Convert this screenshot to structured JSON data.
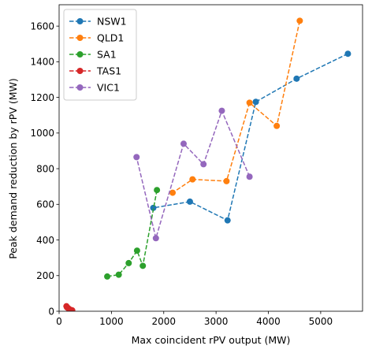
{
  "chart_data": {
    "type": "line",
    "title": "",
    "xlabel": "Max coincident rPV output (MW)",
    "ylabel": "Peak demand reduction by rPV (MW)",
    "xlim": [
      0,
      5800
    ],
    "ylim": [
      0,
      1720
    ],
    "xticks": [
      0,
      1000,
      2000,
      3000,
      4000,
      5000
    ],
    "yticks": [
      0,
      200,
      400,
      600,
      800,
      1000,
      1200,
      1400,
      1600
    ],
    "grid": false,
    "legend_position": "top-left",
    "line_style": "dashed",
    "marker": "circle",
    "series": [
      {
        "name": "NSW1",
        "color": "#1f77b4",
        "x": [
          5520,
          4540,
          3760,
          3220,
          2500,
          1800
        ],
        "y": [
          1445,
          1305,
          1175,
          510,
          615,
          580
        ]
      },
      {
        "name": "QLD1",
        "color": "#ff7f0e",
        "x": [
          4600,
          4160,
          3640,
          3200,
          2550,
          2170
        ],
        "y": [
          1630,
          1040,
          1170,
          730,
          740,
          665
        ]
      },
      {
        "name": "SA1",
        "color": "#2ca02c",
        "x": [
          1870,
          1600,
          1490,
          1330,
          1140,
          920
        ],
        "y": [
          680,
          255,
          340,
          270,
          205,
          195
        ]
      },
      {
        "name": "TAS1",
        "color": "#d62728",
        "x": [
          250,
          220,
          190,
          170,
          150,
          140
        ],
        "y": [
          5,
          8,
          12,
          18,
          22,
          28
        ]
      },
      {
        "name": "VIC1",
        "color": "#9467bd",
        "x": [
          3640,
          3110,
          2760,
          2380,
          1850,
          1480
        ],
        "y": [
          755,
          1125,
          825,
          940,
          410,
          865
        ]
      }
    ]
  }
}
